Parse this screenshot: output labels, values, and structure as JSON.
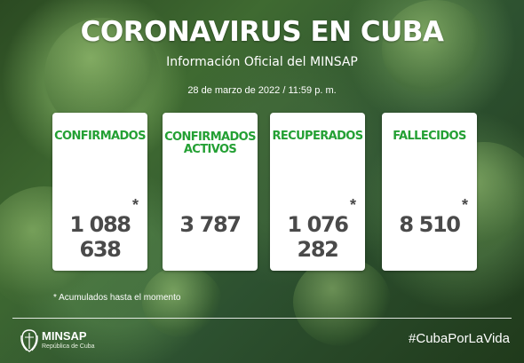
{
  "header": {
    "title": "CORONAVIRUS EN CUBA",
    "subtitle": "Información Oficial del MINSAP",
    "date": "28 de marzo de 2022 / 11:59 p. m."
  },
  "stats": [
    {
      "label": "CONFIRMADOS",
      "value": "1 088 638",
      "asterisk": "*"
    },
    {
      "label": "CONFIRMADOS\nACTIVOS",
      "value": "3 787",
      "asterisk": ""
    },
    {
      "label": "RECUPERADOS",
      "value": "1 076 282",
      "asterisk": "*"
    },
    {
      "label": "FALLECIDOS",
      "value": "8 510",
      "asterisk": "*"
    }
  ],
  "footnote": "* Acumulados hasta el momento",
  "footer": {
    "logo_name": "MINSAP",
    "logo_sub": "República de Cuba",
    "hashtag": "#CubaPorLaVida"
  },
  "colors": {
    "label_green": "#24a034",
    "value_gray": "#4a4a4a",
    "card_bg": "#ffffff"
  }
}
